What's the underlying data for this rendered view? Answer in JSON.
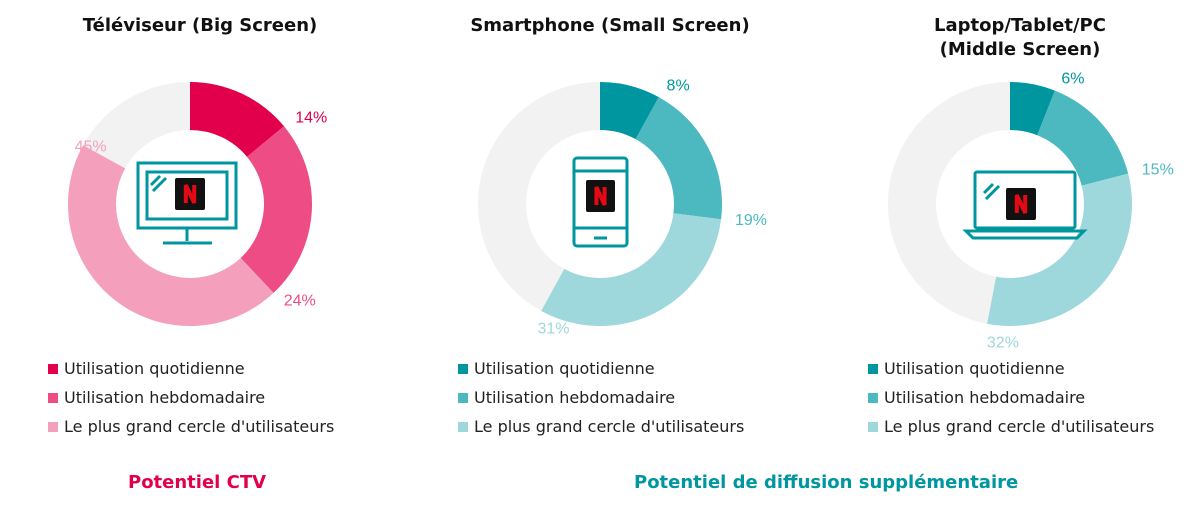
{
  "chart_data": [
    {
      "type": "pie",
      "title_lines": [
        "Téléviseur (Big Screen)"
      ],
      "categories": [
        "Utilisation quotidienne",
        "Utilisation hebdomadaire",
        "Le plus grand cercle d'utilisateurs"
      ],
      "values": [
        14,
        24,
        45
      ],
      "labels": [
        "14%",
        "24%",
        "45%"
      ],
      "colors": [
        "#e2004d",
        "#ee4c84",
        "#f4a0bd"
      ],
      "remainder_color": "#f2f2f2",
      "icon": "tv-icon",
      "legend_position": "bottom"
    },
    {
      "type": "pie",
      "title_lines": [
        "Smartphone (Small Screen)"
      ],
      "categories": [
        "Utilisation quotidienne",
        "Utilisation hebdomadaire",
        "Le plus grand cercle d'utilisateurs"
      ],
      "values": [
        8,
        19,
        31
      ],
      "labels": [
        "8%",
        "19%",
        "31%"
      ],
      "colors": [
        "#0096a0",
        "#4cb8c0",
        "#9ed7dc"
      ],
      "remainder_color": "#f2f2f2",
      "icon": "smartphone-icon",
      "legend_position": "bottom"
    },
    {
      "type": "pie",
      "title_lines": [
        "Laptop/Tablet/PC",
        "(Middle Screen)"
      ],
      "categories": [
        "Utilisation quotidienne",
        "Utilisation hebdomadaire",
        "Le plus grand cercle d'utilisateurs"
      ],
      "values": [
        6,
        15,
        32
      ],
      "labels": [
        "6%",
        "15%",
        "32%"
      ],
      "colors": [
        "#0096a0",
        "#4cb8c0",
        "#9ed7dc"
      ],
      "remainder_color": "#f2f2f2",
      "icon": "laptop-icon",
      "legend_position": "bottom"
    }
  ],
  "footer": {
    "left": {
      "text": "Potentiel CTV",
      "color": "#e2004d"
    },
    "right": {
      "text": "Potentiel de diffusion supplémentaire",
      "color": "#0096a0"
    }
  },
  "icon_colors": {
    "device": "#0096a0",
    "logo_bg": "#111111",
    "logo_letter": "#e50914"
  }
}
